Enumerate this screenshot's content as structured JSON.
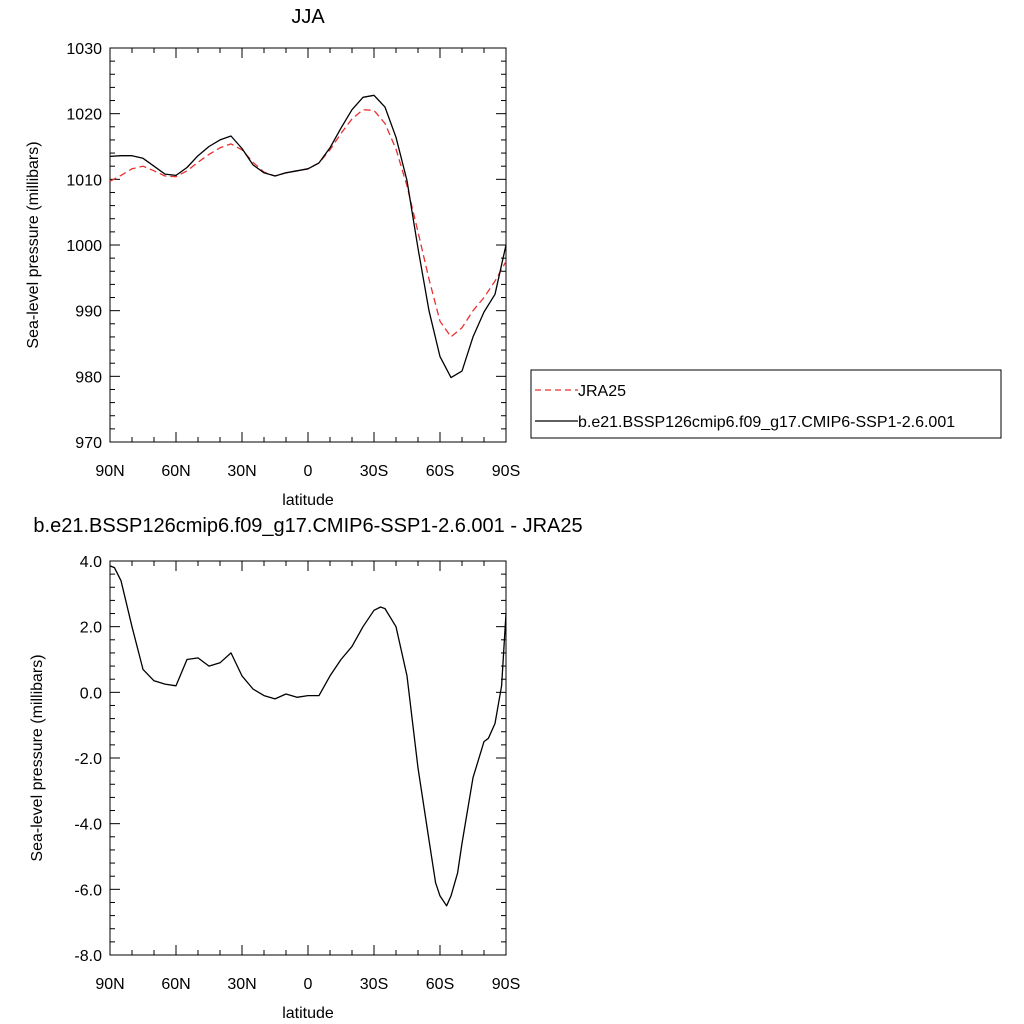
{
  "chart_data": [
    {
      "type": "line",
      "title": "JJA",
      "xlabel": "latitude",
      "ylabel": "Sea-level pressure (millibars)",
      "xlim": [
        90,
        -90
      ],
      "ylim": [
        970,
        1030
      ],
      "x_tick_values": [
        90,
        60,
        30,
        0,
        -30,
        -60,
        -90
      ],
      "x_tick_labels": [
        "90N",
        "60N",
        "30N",
        "0",
        "30S",
        "60S",
        "90S"
      ],
      "y_tick_values": [
        970,
        980,
        990,
        1000,
        1010,
        1020,
        1030
      ],
      "y_tick_labels": [
        "970",
        "980",
        "990",
        "1000",
        "1010",
        "1020",
        "1030"
      ],
      "legend_position": "right",
      "grid": false,
      "series": [
        {
          "name": "JRA25",
          "color": "#e8312f",
          "dash": "dashed",
          "x": [
            90,
            85,
            80,
            75,
            70,
            65,
            60,
            55,
            50,
            45,
            40,
            35,
            30,
            25,
            20,
            15,
            10,
            5,
            0,
            -5,
            -10,
            -15,
            -20,
            -25,
            -30,
            -35,
            -40,
            -45,
            -50,
            -55,
            -60,
            -65,
            -70,
            -75,
            -80,
            -85,
            -90
          ],
          "values": [
            1009.7,
            1010.6,
            1011.6,
            1012.0,
            1011.3,
            1010.5,
            1010.4,
            1011.3,
            1012.6,
            1013.8,
            1014.8,
            1015.4,
            1014.5,
            1012.6,
            1011.1,
            1010.5,
            1011.0,
            1011.3,
            1011.6,
            1012.5,
            1014.5,
            1017.0,
            1019.2,
            1020.6,
            1020.5,
            1018.5,
            1014.6,
            1009.0,
            1002.0,
            994.8,
            988.4,
            986.0,
            987.4,
            990.0,
            992.0,
            994.5,
            997.5
          ]
        },
        {
          "name": "b.e21.BSSP126cmip6.f09_g17.CMIP6-SSP1-2.6.001",
          "color": "#000000",
          "dash": "solid",
          "x": [
            90,
            85,
            80,
            75,
            70,
            65,
            60,
            55,
            50,
            45,
            40,
            35,
            30,
            25,
            20,
            15,
            10,
            5,
            0,
            -5,
            -10,
            -15,
            -20,
            -25,
            -30,
            -35,
            -40,
            -45,
            -50,
            -55,
            -60,
            -65,
            -70,
            -75,
            -80,
            -85,
            -90
          ],
          "values": [
            1013.5,
            1013.6,
            1013.6,
            1013.2,
            1012.0,
            1010.8,
            1010.6,
            1011.8,
            1013.6,
            1015.0,
            1016.0,
            1016.6,
            1014.7,
            1012.2,
            1011.0,
            1010.5,
            1011.0,
            1011.3,
            1011.6,
            1012.5,
            1014.8,
            1017.8,
            1020.6,
            1022.5,
            1022.8,
            1021.0,
            1016.4,
            1009.8,
            999.5,
            990.0,
            983.0,
            979.8,
            980.8,
            986.0,
            989.8,
            992.5,
            1000.0
          ]
        }
      ]
    },
    {
      "type": "line",
      "title": "b.e21.BSSP126cmip6.f09_g17.CMIP6-SSP1-2.6.001 - JRA25",
      "xlabel": "latitude",
      "ylabel": "Sea-level pressure (millibars)",
      "xlim": [
        90,
        -90
      ],
      "ylim": [
        -8,
        4
      ],
      "x_tick_values": [
        90,
        60,
        30,
        0,
        -30,
        -60,
        -90
      ],
      "x_tick_labels": [
        "90N",
        "60N",
        "30N",
        "0",
        "30S",
        "60S",
        "90S"
      ],
      "y_tick_values": [
        -8,
        -6,
        -4,
        -2,
        0,
        2,
        4
      ],
      "y_tick_labels": [
        "-8.0",
        "-6.0",
        "-4.0",
        "-2.0",
        "0.0",
        "2.0",
        "4.0"
      ],
      "grid": false,
      "series": [
        {
          "color": "#000000",
          "dash": "solid",
          "x": [
            90,
            88,
            85,
            80,
            75,
            70,
            65,
            60,
            55,
            50,
            45,
            40,
            35,
            30,
            25,
            20,
            15,
            10,
            5,
            0,
            -5,
            -10,
            -15,
            -20,
            -25,
            -30,
            -33,
            -35,
            -40,
            -45,
            -50,
            -55,
            -58,
            -60,
            -63,
            -65,
            -68,
            -70,
            -75,
            -80,
            -82,
            -85,
            -88,
            -90
          ],
          "values": [
            3.85,
            3.8,
            3.4,
            2.0,
            0.7,
            0.35,
            0.25,
            0.2,
            1.0,
            1.05,
            0.8,
            0.9,
            1.2,
            0.5,
            0.1,
            -0.1,
            -0.2,
            -0.05,
            -0.15,
            -0.1,
            -0.1,
            0.5,
            1.0,
            1.4,
            2.0,
            2.5,
            2.6,
            2.55,
            2.0,
            0.5,
            -2.3,
            -4.5,
            -5.8,
            -6.2,
            -6.5,
            -6.2,
            -5.5,
            -4.6,
            -2.6,
            -1.5,
            -1.4,
            -0.95,
            0.2,
            2.4
          ]
        }
      ]
    }
  ]
}
